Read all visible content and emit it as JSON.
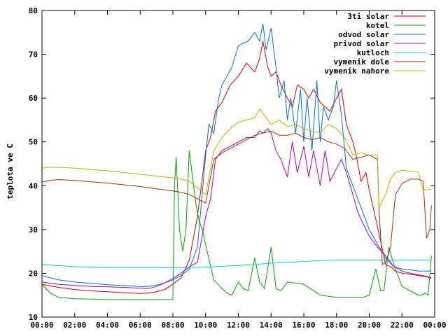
{
  "chart_data": {
    "type": "line",
    "title": "",
    "xlabel": "",
    "ylabel": "teplota ve C",
    "xlim": [
      0,
      24
    ],
    "ylim": [
      10,
      80
    ],
    "x_tick_values": [
      0,
      2,
      4,
      6,
      8,
      10,
      12,
      14,
      16,
      18,
      20,
      22,
      24
    ],
    "x_tick_labels": [
      "00:00",
      "02:00",
      "04:00",
      "06:00",
      "08:00",
      "10:00",
      "12:00",
      "14:00",
      "16:00",
      "18:00",
      "20:00",
      "22:00",
      "00:00"
    ],
    "y_ticks": [
      10,
      20,
      30,
      40,
      50,
      60,
      70,
      80
    ],
    "grid": false,
    "legend_position": "top-right",
    "series": [
      {
        "name": "3ti solar",
        "color": "#cc0000",
        "x": [
          0,
          1,
          2,
          3,
          4,
          5,
          5.5,
          6,
          6.5,
          7,
          7.5,
          8,
          8.5,
          9,
          9.5,
          10,
          10.3,
          10.6,
          11,
          11.5,
          12,
          12.5,
          13,
          13.3,
          13.5,
          13.8,
          14,
          14.3,
          14.6,
          15,
          15.3,
          15.6,
          16,
          16.3,
          16.6,
          17,
          17.3,
          17.6,
          18,
          18.3,
          18.6,
          19,
          19.2,
          19.5,
          19.8,
          20,
          20.3,
          20.6,
          20.8,
          21,
          21.3,
          21.6,
          22,
          22.5,
          23,
          23.5,
          23.8
        ],
        "y": [
          17.5,
          16.8,
          16.3,
          16.0,
          15.8,
          15.6,
          15.5,
          15.4,
          15.5,
          15.8,
          16.3,
          17.5,
          19.0,
          23.0,
          33.0,
          48.0,
          51.0,
          57.0,
          59.0,
          63.0,
          65.0,
          68.0,
          66.0,
          69.0,
          73.0,
          67.0,
          65.0,
          66.0,
          63.0,
          60.0,
          58.0,
          63.0,
          62.0,
          60.0,
          62.0,
          59.0,
          58.0,
          57.0,
          60.0,
          62.0,
          54.0,
          50.0,
          47.0,
          41.0,
          43.0,
          39.0,
          34.0,
          29.0,
          25.5,
          22.0,
          21.5,
          20.5,
          20.0,
          19.8,
          19.5,
          19.2,
          18.8
        ]
      },
      {
        "name": "kotel",
        "color": "#00a000",
        "x": [
          0,
          0.5,
          1,
          2,
          4,
          6,
          8,
          8.1,
          8.2,
          8.4,
          8.6,
          8.8,
          9.0,
          9.2,
          9.4,
          9.6,
          9.8,
          10,
          10.5,
          11,
          11.3,
          11.6,
          12,
          12.3,
          12.6,
          13,
          13.3,
          13.6,
          14,
          14.3,
          14.6,
          15,
          16,
          17,
          18,
          18.8,
          19.2,
          19.6,
          20,
          20.4,
          20.7,
          20.9,
          21.2,
          21.5,
          22,
          22.5,
          23,
          23.2,
          23.4,
          23.6,
          23.8
        ],
        "y": [
          17.5,
          15.5,
          14.5,
          14.2,
          14.0,
          14.0,
          14.0,
          40.0,
          46.5,
          30.0,
          25.0,
          30.0,
          48.0,
          42.0,
          36.0,
          32.0,
          30.0,
          26.5,
          18.5,
          16.5,
          15.5,
          15.0,
          18.0,
          16.5,
          16.0,
          23.5,
          18.0,
          16.5,
          26.0,
          16.5,
          16.0,
          18.0,
          17.5,
          15.0,
          14.5,
          14.5,
          14.5,
          14.5,
          15.0,
          21.0,
          16.0,
          16.0,
          26.0,
          22.0,
          17.0,
          16.0,
          15.0,
          15.0,
          15.5,
          15.0,
          24.0
        ]
      },
      {
        "name": "odvod solar",
        "color": "#0070d0",
        "x": [
          0,
          1,
          2,
          3,
          4,
          5,
          6,
          6.5,
          7,
          7.5,
          8,
          8.5,
          9,
          9.5,
          10,
          10.2,
          10.5,
          10.8,
          11,
          11.3,
          11.6,
          12,
          12.3,
          12.6,
          13,
          13.3,
          13.5,
          13.7,
          14,
          14.3,
          14.5,
          14.8,
          15,
          15.2,
          15.5,
          15.8,
          16,
          16.2,
          16.5,
          16.8,
          17,
          17.2,
          17.5,
          17.8,
          18,
          18.3,
          18.6,
          19,
          19.3,
          19.6,
          20,
          20.3,
          20.6,
          21,
          21.5,
          22,
          22.5,
          23,
          23.5,
          23.8
        ],
        "y": [
          19.5,
          18.5,
          18.0,
          17.7,
          17.4,
          17.2,
          17.0,
          17.0,
          17.3,
          17.8,
          18.5,
          19.5,
          21.0,
          26.0,
          47.0,
          54.0,
          52.0,
          60.0,
          63.0,
          65.0,
          67.0,
          72.0,
          72.5,
          73.0,
          75.0,
          73.0,
          77.0,
          71.0,
          76.0,
          67.0,
          60.0,
          64.0,
          55.0,
          60.0,
          52.0,
          62.0,
          50.0,
          60.0,
          48.0,
          64.0,
          50.0,
          58.0,
          55.0,
          58.0,
          64.0,
          56.0,
          44.0,
          40.0,
          37.0,
          34.0,
          30.0,
          28.0,
          26.0,
          23.5,
          21.5,
          21.0,
          20.8,
          20.5,
          20.5,
          20.5
        ]
      },
      {
        "name": "privod solar",
        "color": "#a000c0",
        "x": [
          0,
          1,
          2,
          3,
          4,
          5,
          6,
          6.5,
          7,
          7.5,
          8,
          8.5,
          9,
          9.5,
          10,
          10.3,
          10.6,
          11,
          11.5,
          12,
          12.5,
          13,
          13.3,
          13.5,
          13.8,
          14,
          14.3,
          14.6,
          15,
          15.3,
          15.6,
          16,
          16.3,
          16.6,
          17,
          17.3,
          17.6,
          18,
          18.3,
          18.6,
          19,
          19.3,
          19.6,
          20,
          20.5,
          21,
          21.5,
          22,
          22.5,
          23,
          23.5,
          23.8
        ],
        "y": [
          18.0,
          17.5,
          17.2,
          17.0,
          16.9,
          16.8,
          16.6,
          16.5,
          17.0,
          17.8,
          18.8,
          20.0,
          21.5,
          22.5,
          33.0,
          37.0,
          46.0,
          48.0,
          49.0,
          50.0,
          51.0,
          51.0,
          52.5,
          52.0,
          53.0,
          52.0,
          48.0,
          46.0,
          42.0,
          50.0,
          43.0,
          49.0,
          42.0,
          48.0,
          40.0,
          48.0,
          41.0,
          44.0,
          46.0,
          43.0,
          38.0,
          34.0,
          31.5,
          28.5,
          26.0,
          24.0,
          21.5,
          20.5,
          20.0,
          19.7,
          19.3,
          19.0
        ]
      },
      {
        "name": "kutloch",
        "color": "#00d0d0",
        "x": [
          0,
          2,
          4,
          6,
          8,
          9,
          10,
          11,
          12,
          13,
          14,
          15,
          16,
          17,
          18,
          19,
          20,
          21,
          22,
          23,
          23.8
        ],
        "y": [
          22.0,
          21.5,
          21.3,
          21.3,
          21.3,
          21.3,
          21.4,
          21.6,
          21.8,
          22.0,
          22.3,
          22.5,
          22.7,
          22.9,
          23.0,
          23.0,
          23.0,
          23.0,
          23.0,
          23.0,
          23.0
        ]
      },
      {
        "name": "vymenik dole",
        "color": "#a03000",
        "x": [
          0,
          0.5,
          1,
          2,
          3,
          4,
          5,
          6,
          7,
          8,
          8.5,
          9,
          9.5,
          10,
          10.2,
          10.5,
          11,
          11.5,
          12,
          12.5,
          13,
          13.5,
          14,
          14.5,
          15,
          15.5,
          16,
          16.5,
          17,
          17.5,
          18,
          18.5,
          19,
          19.5,
          20,
          20.5,
          20.6,
          20.8,
          21,
          21.3,
          21.6,
          22,
          22.5,
          23,
          23.3,
          23.5,
          23.7,
          23.8
        ],
        "y": [
          40.8,
          41.2,
          41.4,
          41.2,
          40.9,
          40.6,
          40.2,
          39.8,
          39.3,
          38.8,
          38.5,
          38.0,
          37.0,
          36.0,
          40.0,
          46.0,
          47.5,
          48.5,
          49.5,
          50.5,
          51.5,
          52.0,
          52.5,
          51.5,
          51.5,
          52.0,
          51.0,
          50.5,
          51.0,
          50.0,
          49.5,
          48.5,
          46.0,
          46.5,
          47.0,
          46.0,
          34.5,
          22.0,
          22.5,
          26.0,
          38.0,
          40.5,
          41.5,
          41.5,
          41.0,
          28.0,
          30.0,
          35.5
        ]
      },
      {
        "name": "vymenik nahore",
        "color": "#c0b000",
        "x": [
          0,
          0.5,
          1,
          2,
          3,
          4,
          5,
          6,
          7,
          8,
          8.5,
          9,
          9.5,
          10,
          10.2,
          10.5,
          11,
          11.5,
          12,
          12.5,
          13,
          13.3,
          13.6,
          14,
          14.5,
          15,
          15.5,
          16,
          16.5,
          17,
          17.5,
          18,
          18.5,
          19,
          19.5,
          20,
          20.5,
          20.6,
          20.8,
          21,
          21.3,
          21.6,
          22,
          22.5,
          23,
          23.3,
          23.5,
          23.8
        ],
        "y": [
          44.0,
          44.2,
          44.2,
          44.0,
          43.7,
          43.4,
          43.0,
          42.6,
          42.2,
          41.8,
          41.5,
          41.0,
          39.5,
          38.0,
          42.0,
          48.0,
          51.0,
          53.0,
          54.5,
          55.0,
          55.5,
          57.5,
          56.0,
          54.0,
          55.0,
          53.5,
          54.0,
          53.0,
          52.5,
          52.0,
          54.0,
          53.0,
          51.0,
          47.0,
          47.5,
          47.0,
          47.0,
          35.0,
          36.5,
          38.0,
          41.5,
          43.0,
          43.5,
          43.3,
          43.2,
          39.0,
          39.0,
          39.3
        ]
      }
    ]
  }
}
